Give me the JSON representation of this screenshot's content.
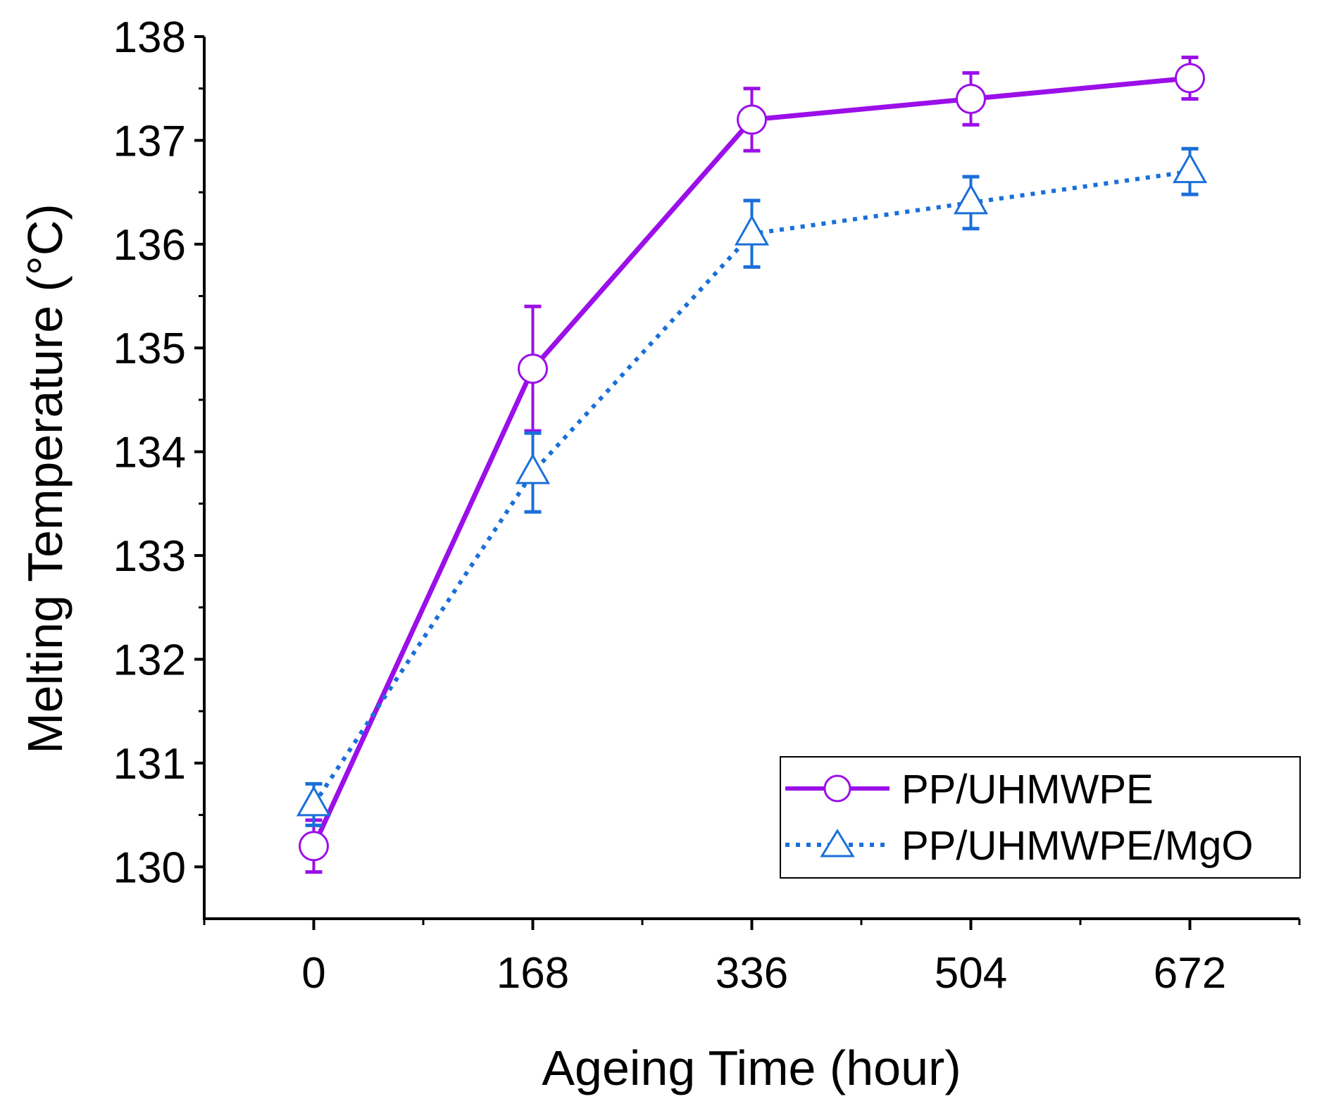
{
  "chart_data": {
    "type": "line",
    "title": "",
    "xlabel": "Ageing Time (hour)",
    "ylabel": "Melting Temperature (°C)",
    "x": [
      0,
      168,
      336,
      504,
      672
    ],
    "x_tick_labels": [
      "0",
      "168",
      "336",
      "504",
      "672"
    ],
    "xlim": [
      -84,
      756
    ],
    "ylim": [
      129.5,
      138
    ],
    "y_ticks": [
      130,
      131,
      132,
      133,
      134,
      135,
      136,
      137,
      138
    ],
    "y_tick_labels": [
      "130",
      "131",
      "132",
      "133",
      "134",
      "135",
      "136",
      "137",
      "138"
    ],
    "grid": false,
    "legend_position": "bottom-right",
    "series": [
      {
        "name": "PP/UHMWPE",
        "color": "#9B0FE8",
        "line_style": "solid",
        "marker": "circle",
        "values": [
          130.2,
          134.8,
          137.2,
          137.4,
          137.6
        ],
        "errors": [
          0.25,
          0.6,
          0.3,
          0.25,
          0.2
        ]
      },
      {
        "name": "PP/UHMWPE/MgO",
        "color": "#1A6FD9",
        "line_style": "dotted",
        "marker": "triangle",
        "values": [
          130.6,
          133.8,
          136.1,
          136.4,
          136.7
        ],
        "errors": [
          0.2,
          0.38,
          0.32,
          0.25,
          0.22
        ]
      }
    ]
  }
}
